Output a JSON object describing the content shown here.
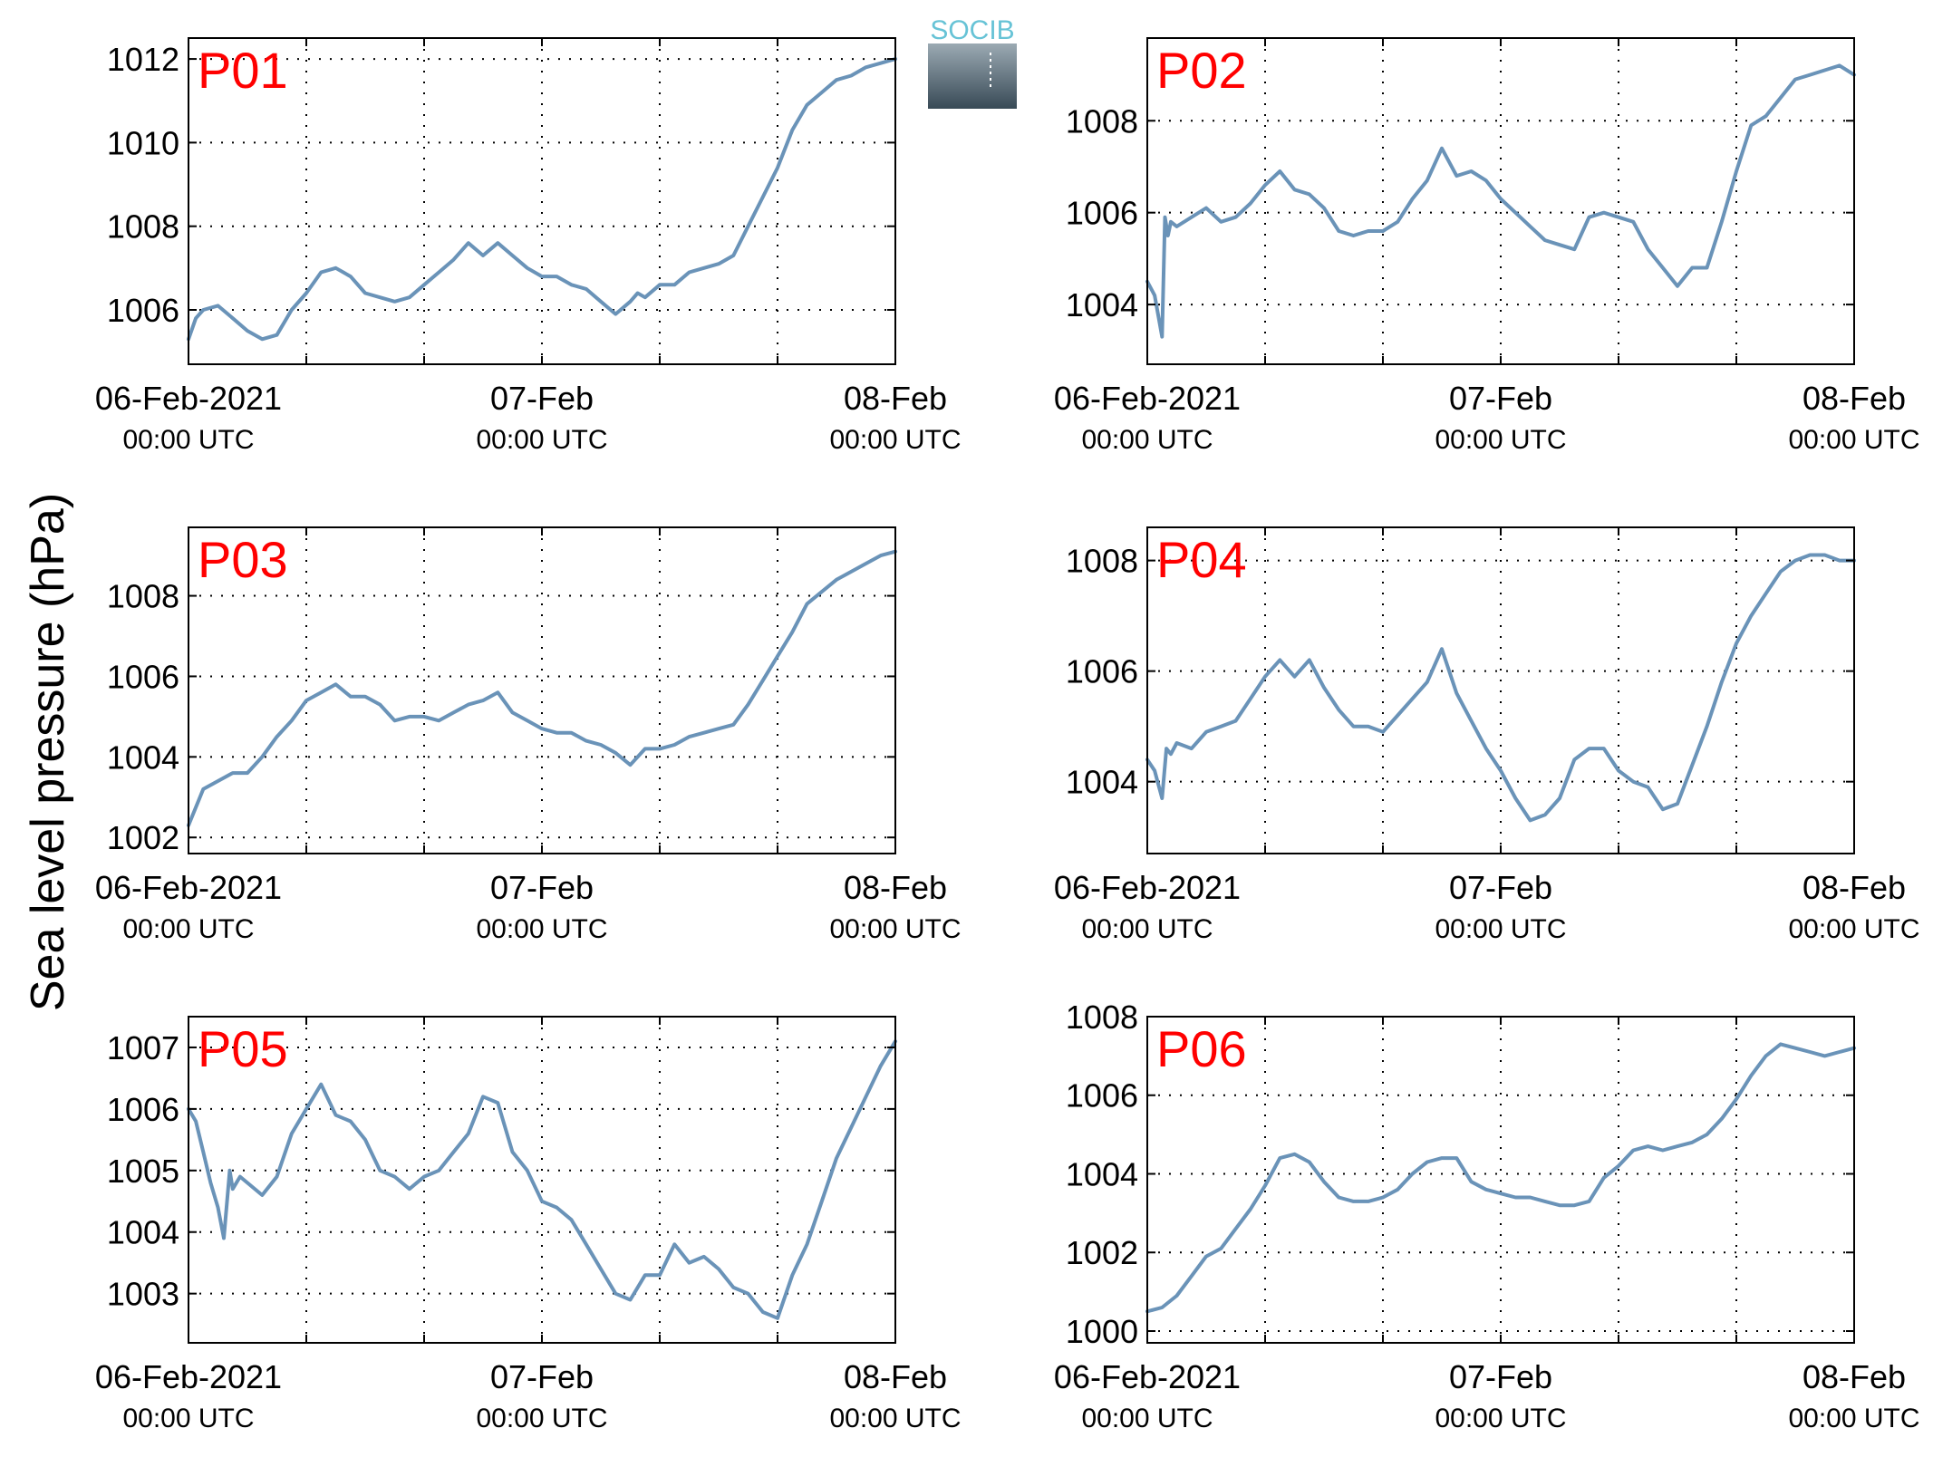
{
  "figure": {
    "ylabel": "Sea level pressure (hPa)",
    "line_color": "#6a93b8",
    "station_label_color": "#ff0000",
    "grid": true,
    "grid_style": "dotted",
    "logo": {
      "text": "SOCIB",
      "text_color": "#67c3d6",
      "gradient_top": "#a9b7c0",
      "gradient_bottom": "#384a56",
      "icon": "socib-logo-icon"
    }
  },
  "chart_data": [
    {
      "type": "line",
      "station": "P01",
      "x_labels": [
        {
          "x": 0,
          "line1": "06-Feb-2021",
          "line2": "00:00 UTC"
        },
        {
          "x": 24,
          "line1": "07-Feb",
          "line2": "00:00 UTC"
        },
        {
          "x": 48,
          "line1": "08-Feb",
          "line2": "00:00 UTC"
        }
      ],
      "x_unit": "hours since 06-Feb-2021 00:00 UTC",
      "x_grid": [
        8,
        16,
        24,
        32,
        40
      ],
      "xlim": [
        0,
        48
      ],
      "ylim": [
        1004.7,
        1012.5
      ],
      "yticks": [
        1006,
        1008,
        1010,
        1012
      ],
      "x": [
        0,
        0.5,
        1,
        2,
        3,
        4,
        5,
        6,
        7,
        8,
        9,
        10,
        11,
        12,
        13,
        14,
        15,
        16,
        17,
        18,
        19,
        20,
        21,
        22,
        23,
        24,
        25,
        26,
        27,
        28,
        29,
        30,
        30.5,
        31,
        32,
        33,
        34,
        35,
        36,
        37,
        38,
        39,
        40,
        41,
        42,
        43,
        44,
        45,
        46,
        47,
        48
      ],
      "y": [
        1005.3,
        1005.8,
        1006.0,
        1006.1,
        1005.8,
        1005.5,
        1005.3,
        1005.4,
        1006.0,
        1006.4,
        1006.9,
        1007.0,
        1006.8,
        1006.4,
        1006.3,
        1006.2,
        1006.3,
        1006.6,
        1006.9,
        1007.2,
        1007.6,
        1007.3,
        1007.6,
        1007.3,
        1007.0,
        1006.8,
        1006.8,
        1006.6,
        1006.5,
        1006.2,
        1005.9,
        1006.2,
        1006.4,
        1006.3,
        1006.6,
        1006.6,
        1006.9,
        1007.0,
        1007.1,
        1007.3,
        1008.0,
        1008.7,
        1009.4,
        1010.3,
        1010.9,
        1011.2,
        1011.5,
        1011.6,
        1011.8,
        1011.9,
        1012.0
      ]
    },
    {
      "type": "line",
      "station": "P02",
      "x_labels": [
        {
          "x": 0,
          "line1": "06-Feb-2021",
          "line2": "00:00 UTC"
        },
        {
          "x": 24,
          "line1": "07-Feb",
          "line2": "00:00 UTC"
        },
        {
          "x": 48,
          "line1": "08-Feb",
          "line2": "00:00 UTC"
        }
      ],
      "x_unit": "hours since 06-Feb-2021 00:00 UTC",
      "x_grid": [
        8,
        16,
        24,
        32,
        40
      ],
      "xlim": [
        0,
        48
      ],
      "ylim": [
        1002.7,
        1009.8
      ],
      "yticks": [
        1004,
        1006,
        1008
      ],
      "x": [
        0,
        0.5,
        1,
        1.2,
        1.4,
        1.6,
        2,
        3,
        4,
        5,
        6,
        7,
        8,
        9,
        10,
        11,
        12,
        13,
        14,
        15,
        16,
        17,
        18,
        19,
        20,
        21,
        22,
        23,
        24,
        25,
        26,
        27,
        28,
        29,
        30,
        31,
        32,
        33,
        34,
        35,
        36,
        37,
        38,
        39,
        40,
        41,
        42,
        43,
        44,
        45,
        46,
        47,
        48
      ],
      "y": [
        1004.5,
        1004.2,
        1003.3,
        1005.9,
        1005.5,
        1005.8,
        1005.7,
        1005.9,
        1006.1,
        1005.8,
        1005.9,
        1006.2,
        1006.6,
        1006.9,
        1006.5,
        1006.4,
        1006.1,
        1005.6,
        1005.5,
        1005.6,
        1005.6,
        1005.8,
        1006.3,
        1006.7,
        1007.4,
        1006.8,
        1006.9,
        1006.7,
        1006.3,
        1006.0,
        1005.7,
        1005.4,
        1005.3,
        1005.2,
        1005.9,
        1006.0,
        1005.9,
        1005.8,
        1005.2,
        1004.8,
        1004.4,
        1004.8,
        1004.8,
        1005.8,
        1006.9,
        1007.9,
        1008.1,
        1008.5,
        1008.9,
        1009.0,
        1009.1,
        1009.2,
        1009.0
      ]
    },
    {
      "type": "line",
      "station": "P03",
      "x_labels": [
        {
          "x": 0,
          "line1": "06-Feb-2021",
          "line2": "00:00 UTC"
        },
        {
          "x": 24,
          "line1": "07-Feb",
          "line2": "00:00 UTC"
        },
        {
          "x": 48,
          "line1": "08-Feb",
          "line2": "00:00 UTC"
        }
      ],
      "x_unit": "hours since 06-Feb-2021 00:00 UTC",
      "x_grid": [
        8,
        16,
        24,
        32,
        40
      ],
      "xlim": [
        0,
        48
      ],
      "ylim": [
        1001.6,
        1009.7
      ],
      "yticks": [
        1002,
        1004,
        1006,
        1008
      ],
      "x": [
        0,
        1,
        2,
        3,
        4,
        5,
        6,
        7,
        8,
        9,
        10,
        11,
        12,
        13,
        14,
        15,
        16,
        17,
        18,
        19,
        20,
        21,
        22,
        23,
        24,
        25,
        26,
        27,
        28,
        29,
        30,
        31,
        32,
        33,
        34,
        35,
        36,
        37,
        38,
        39,
        40,
        41,
        42,
        43,
        44,
        45,
        46,
        47,
        48
      ],
      "y": [
        1002.3,
        1003.2,
        1003.4,
        1003.6,
        1003.6,
        1004.0,
        1004.5,
        1004.9,
        1005.4,
        1005.6,
        1005.8,
        1005.5,
        1005.5,
        1005.3,
        1004.9,
        1005.0,
        1005.0,
        1004.9,
        1005.1,
        1005.3,
        1005.4,
        1005.6,
        1005.1,
        1004.9,
        1004.7,
        1004.6,
        1004.6,
        1004.4,
        1004.3,
        1004.1,
        1003.8,
        1004.2,
        1004.2,
        1004.3,
        1004.5,
        1004.6,
        1004.7,
        1004.8,
        1005.3,
        1005.9,
        1006.5,
        1007.1,
        1007.8,
        1008.1,
        1008.4,
        1008.6,
        1008.8,
        1009.0,
        1009.1
      ]
    },
    {
      "type": "line",
      "station": "P04",
      "x_labels": [
        {
          "x": 0,
          "line1": "06-Feb-2021",
          "line2": "00:00 UTC"
        },
        {
          "x": 24,
          "line1": "07-Feb",
          "line2": "00:00 UTC"
        },
        {
          "x": 48,
          "line1": "08-Feb",
          "line2": "00:00 UTC"
        }
      ],
      "x_unit": "hours since 06-Feb-2021 00:00 UTC",
      "x_grid": [
        8,
        16,
        24,
        32,
        40
      ],
      "xlim": [
        0,
        48
      ],
      "ylim": [
        1002.7,
        1008.6
      ],
      "yticks": [
        1004,
        1006,
        1008
      ],
      "x": [
        0,
        0.5,
        1,
        1.3,
        1.6,
        2,
        3,
        4,
        5,
        6,
        7,
        8,
        9,
        10,
        11,
        12,
        13,
        14,
        15,
        16,
        17,
        18,
        19,
        20,
        21,
        22,
        23,
        24,
        25,
        26,
        27,
        28,
        29,
        30,
        31,
        32,
        33,
        34,
        35,
        36,
        37,
        38,
        39,
        40,
        41,
        42,
        43,
        44,
        45,
        46,
        47,
        48
      ],
      "y": [
        1004.4,
        1004.2,
        1003.7,
        1004.6,
        1004.5,
        1004.7,
        1004.6,
        1004.9,
        1005.0,
        1005.1,
        1005.5,
        1005.9,
        1006.2,
        1005.9,
        1006.2,
        1005.7,
        1005.3,
        1005.0,
        1005.0,
        1004.9,
        1005.2,
        1005.5,
        1005.8,
        1006.4,
        1005.6,
        1005.1,
        1004.6,
        1004.2,
        1003.7,
        1003.3,
        1003.4,
        1003.7,
        1004.4,
        1004.6,
        1004.6,
        1004.2,
        1004.0,
        1003.9,
        1003.5,
        1003.6,
        1004.3,
        1005.0,
        1005.8,
        1006.5,
        1007.0,
        1007.4,
        1007.8,
        1008.0,
        1008.1,
        1008.1,
        1008.0,
        1008.0
      ]
    },
    {
      "type": "line",
      "station": "P05",
      "x_labels": [
        {
          "x": 0,
          "line1": "06-Feb-2021",
          "line2": "00:00 UTC"
        },
        {
          "x": 24,
          "line1": "07-Feb",
          "line2": "00:00 UTC"
        },
        {
          "x": 48,
          "line1": "08-Feb",
          "line2": "00:00 UTC"
        }
      ],
      "x_unit": "hours since 06-Feb-2021 00:00 UTC",
      "x_grid": [
        8,
        16,
        24,
        32,
        40
      ],
      "xlim": [
        0,
        48
      ],
      "ylim": [
        1002.2,
        1007.5
      ],
      "yticks": [
        1003,
        1004,
        1005,
        1006,
        1007
      ],
      "x": [
        0,
        0.5,
        1,
        1.5,
        2,
        2.4,
        2.8,
        3,
        3.5,
        4,
        5,
        6,
        7,
        8,
        9,
        10,
        11,
        12,
        13,
        14,
        15,
        16,
        17,
        18,
        19,
        20,
        21,
        22,
        23,
        24,
        25,
        26,
        27,
        28,
        29,
        30,
        31,
        32,
        33,
        34,
        35,
        36,
        37,
        38,
        39,
        40,
        41,
        42,
        43,
        44,
        45,
        46,
        47,
        48
      ],
      "y": [
        1006.0,
        1005.8,
        1005.3,
        1004.8,
        1004.4,
        1003.9,
        1005.0,
        1004.7,
        1004.9,
        1004.8,
        1004.6,
        1004.9,
        1005.6,
        1006.0,
        1006.4,
        1005.9,
        1005.8,
        1005.5,
        1005.0,
        1004.9,
        1004.7,
        1004.9,
        1005.0,
        1005.3,
        1005.6,
        1006.2,
        1006.1,
        1005.3,
        1005.0,
        1004.5,
        1004.4,
        1004.2,
        1003.8,
        1003.4,
        1003.0,
        1002.9,
        1003.3,
        1003.3,
        1003.8,
        1003.5,
        1003.6,
        1003.4,
        1003.1,
        1003.0,
        1002.7,
        1002.6,
        1003.3,
        1003.8,
        1004.5,
        1005.2,
        1005.7,
        1006.2,
        1006.7,
        1007.1
      ]
    },
    {
      "type": "line",
      "station": "P06",
      "x_labels": [
        {
          "x": 0,
          "line1": "06-Feb-2021",
          "line2": "00:00 UTC"
        },
        {
          "x": 24,
          "line1": "07-Feb",
          "line2": "00:00 UTC"
        },
        {
          "x": 48,
          "line1": "08-Feb",
          "line2": "00:00 UTC"
        }
      ],
      "x_unit": "hours since 06-Feb-2021 00:00 UTC",
      "x_grid": [
        8,
        16,
        24,
        32,
        40
      ],
      "xlim": [
        0,
        48
      ],
      "ylim": [
        999.7,
        1008.0
      ],
      "yticks": [
        1000,
        1002,
        1004,
        1006,
        1008
      ],
      "x": [
        0,
        1,
        2,
        3,
        4,
        5,
        6,
        7,
        8,
        9,
        10,
        11,
        12,
        13,
        14,
        15,
        16,
        17,
        18,
        19,
        20,
        21,
        22,
        23,
        24,
        25,
        26,
        27,
        28,
        29,
        30,
        31,
        32,
        33,
        34,
        35,
        36,
        37,
        38,
        39,
        40,
        41,
        42,
        43,
        44,
        45,
        46,
        47,
        48
      ],
      "y": [
        1000.5,
        1000.6,
        1000.9,
        1001.4,
        1001.9,
        1002.1,
        1002.6,
        1003.1,
        1003.7,
        1004.4,
        1004.5,
        1004.3,
        1003.8,
        1003.4,
        1003.3,
        1003.3,
        1003.4,
        1003.6,
        1004.0,
        1004.3,
        1004.4,
        1004.4,
        1003.8,
        1003.6,
        1003.5,
        1003.4,
        1003.4,
        1003.3,
        1003.2,
        1003.2,
        1003.3,
        1003.9,
        1004.2,
        1004.6,
        1004.7,
        1004.6,
        1004.7,
        1004.8,
        1005.0,
        1005.4,
        1005.9,
        1006.5,
        1007.0,
        1007.3,
        1007.2,
        1007.1,
        1007.0,
        1007.1,
        1007.2
      ]
    }
  ]
}
